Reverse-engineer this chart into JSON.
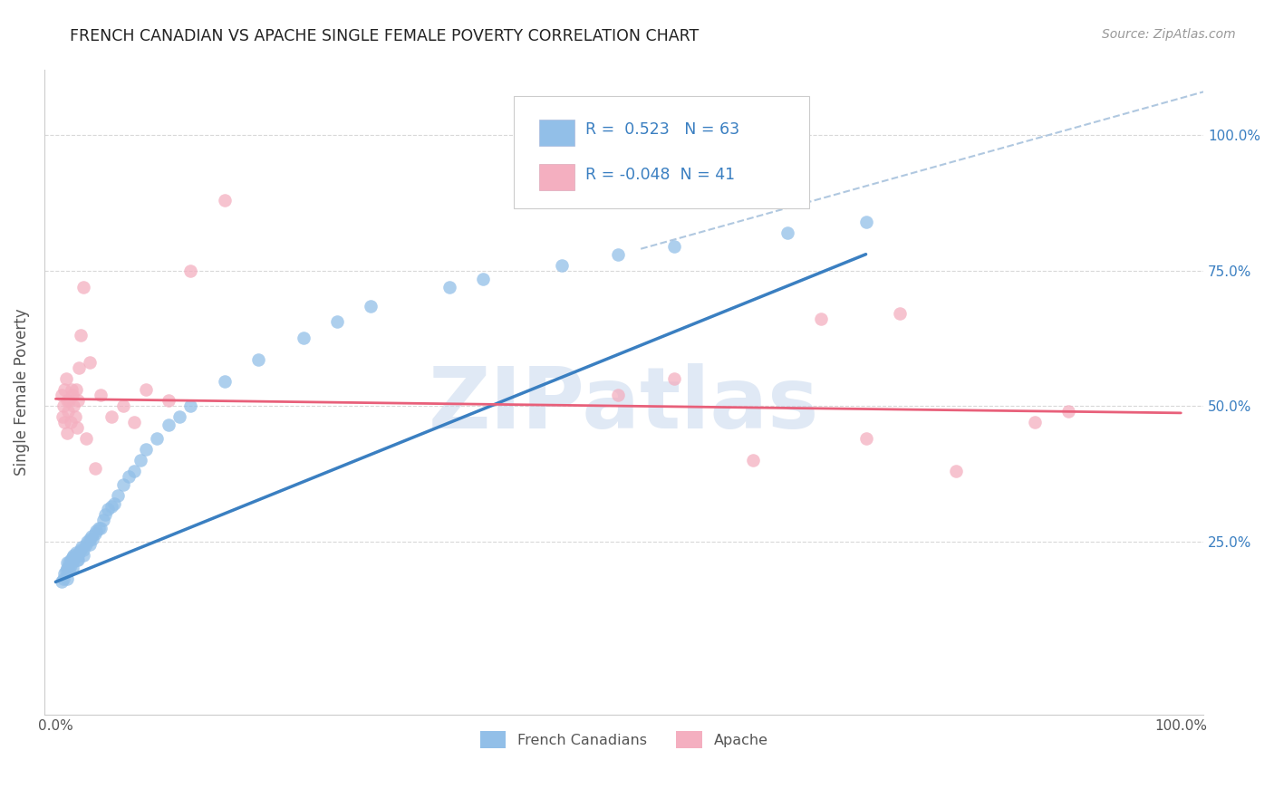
{
  "title": "FRENCH CANADIAN VS APACHE SINGLE FEMALE POVERTY CORRELATION CHART",
  "source": "Source: ZipAtlas.com",
  "ylabel": "Single Female Poverty",
  "blue_R": 0.523,
  "blue_N": 63,
  "pink_R": -0.048,
  "pink_N": 41,
  "blue_color": "#92bfe8",
  "pink_color": "#f4afc0",
  "blue_line_color": "#3a7fc1",
  "pink_line_color": "#e8607a",
  "dash_color": "#b0c8e0",
  "grid_color": "#d8d8d8",
  "watermark_color": "#c8d8ed",
  "blue_scatter_x": [
    0.005,
    0.007,
    0.008,
    0.009,
    0.01,
    0.01,
    0.01,
    0.012,
    0.012,
    0.013,
    0.013,
    0.014,
    0.015,
    0.015,
    0.016,
    0.016,
    0.017,
    0.018,
    0.019,
    0.02,
    0.02,
    0.021,
    0.022,
    0.023,
    0.025,
    0.025,
    0.027,
    0.028,
    0.03,
    0.03,
    0.032,
    0.033,
    0.035,
    0.036,
    0.038,
    0.04,
    0.042,
    0.044,
    0.046,
    0.05,
    0.052,
    0.055,
    0.06,
    0.065,
    0.07,
    0.075,
    0.08,
    0.09,
    0.1,
    0.11,
    0.12,
    0.15,
    0.18,
    0.22,
    0.25,
    0.28,
    0.35,
    0.38,
    0.45,
    0.5,
    0.55,
    0.65,
    0.72
  ],
  "blue_scatter_y": [
    0.175,
    0.18,
    0.19,
    0.195,
    0.18,
    0.2,
    0.21,
    0.195,
    0.21,
    0.205,
    0.215,
    0.21,
    0.2,
    0.22,
    0.215,
    0.225,
    0.22,
    0.23,
    0.215,
    0.215,
    0.225,
    0.23,
    0.235,
    0.24,
    0.225,
    0.235,
    0.245,
    0.25,
    0.245,
    0.255,
    0.26,
    0.255,
    0.265,
    0.27,
    0.275,
    0.275,
    0.29,
    0.3,
    0.31,
    0.315,
    0.32,
    0.335,
    0.355,
    0.37,
    0.38,
    0.4,
    0.42,
    0.44,
    0.465,
    0.48,
    0.5,
    0.545,
    0.585,
    0.625,
    0.655,
    0.685,
    0.72,
    0.735,
    0.76,
    0.78,
    0.795,
    0.82,
    0.84
  ],
  "pink_scatter_x": [
    0.005,
    0.006,
    0.007,
    0.008,
    0.008,
    0.009,
    0.01,
    0.01,
    0.011,
    0.012,
    0.013,
    0.014,
    0.015,
    0.016,
    0.017,
    0.018,
    0.019,
    0.02,
    0.021,
    0.022,
    0.025,
    0.027,
    0.03,
    0.035,
    0.04,
    0.05,
    0.06,
    0.07,
    0.08,
    0.1,
    0.12,
    0.15,
    0.5,
    0.55,
    0.62,
    0.68,
    0.72,
    0.75,
    0.8,
    0.87,
    0.9
  ],
  "pink_scatter_y": [
    0.52,
    0.48,
    0.5,
    0.47,
    0.53,
    0.55,
    0.45,
    0.51,
    0.49,
    0.51,
    0.47,
    0.53,
    0.52,
    0.5,
    0.48,
    0.53,
    0.46,
    0.51,
    0.57,
    0.63,
    0.72,
    0.44,
    0.58,
    0.385,
    0.52,
    0.48,
    0.5,
    0.47,
    0.53,
    0.51,
    0.75,
    0.88,
    0.52,
    0.55,
    0.4,
    0.66,
    0.44,
    0.67,
    0.38,
    0.47,
    0.49
  ],
  "blue_line_x": [
    0.0,
    0.72
  ],
  "blue_line_y": [
    0.175,
    0.78
  ],
  "pink_line_x": [
    0.0,
    1.0
  ],
  "pink_line_y": [
    0.513,
    0.487
  ],
  "dash_line_x": [
    0.52,
    1.02
  ],
  "dash_line_y": [
    0.79,
    1.08
  ],
  "xlim": [
    -0.01,
    1.02
  ],
  "ylim": [
    -0.07,
    1.12
  ],
  "ytick_positions": [
    0.25,
    0.5,
    0.75,
    1.0
  ],
  "ytick_labels_right": [
    "25.0%",
    "50.0%",
    "75.0%",
    "100.0%"
  ],
  "xtick_positions": [
    0.0,
    1.0
  ],
  "xtick_labels": [
    "0.0%",
    "100.0%"
  ]
}
